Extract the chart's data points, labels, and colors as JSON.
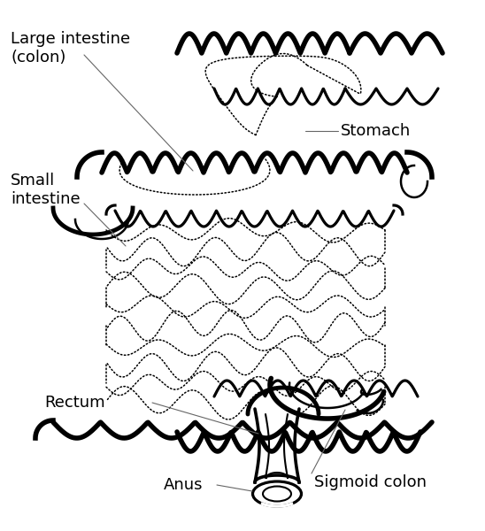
{
  "background_color": "#ffffff",
  "line_color": "#000000",
  "labels": {
    "large_intestine": "Large intestine\n(colon)",
    "small_intestine": "Small\nintestine",
    "stomach": "Stomach",
    "rectum": "Rectum",
    "anus": "Anus",
    "sigmoid_colon": "Sigmoid colon"
  },
  "label_fontsize": 13,
  "thick_lw": 4.0,
  "thin_lw": 1.8,
  "dot_lw": 1.1
}
